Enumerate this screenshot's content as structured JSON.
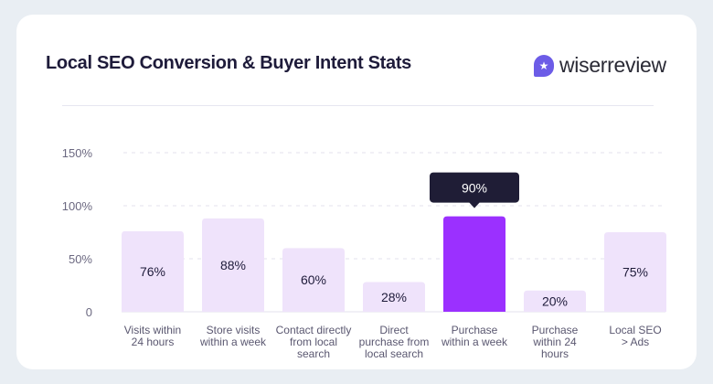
{
  "header": {
    "title": "Local SEO Conversion & Buyer Intent Stats",
    "logo_text": "wiserreview"
  },
  "colors": {
    "bar": "#efe3fb",
    "highlight": "#9b30ff",
    "tooltip": "#1f1d36",
    "background": "#e9eef3"
  },
  "chart_data": {
    "type": "bar",
    "title": "",
    "xlabel": "",
    "ylabel": "",
    "ylim": [
      0,
      150
    ],
    "yticks": [
      "0",
      "50%",
      "100%",
      "150%"
    ],
    "ytick_values": [
      0,
      50,
      100,
      150
    ],
    "grid": true,
    "categories": [
      [
        "Visits within",
        "24 hours"
      ],
      [
        "Store visits",
        "within a week"
      ],
      [
        "Contact directly",
        "from local",
        "search"
      ],
      [
        "Direct",
        "purchase from",
        "local search"
      ],
      [
        "Purchase",
        "within a week"
      ],
      [
        "Purchase",
        "within 24",
        "hours"
      ],
      [
        "Local SEO",
        "> Ads"
      ]
    ],
    "values": [
      76,
      88,
      60,
      28,
      90,
      20,
      75
    ],
    "labels": [
      "76%",
      "88%",
      "60%",
      "28%",
      "90%",
      "20%",
      "75%"
    ],
    "highlight_index": 4,
    "tooltip": "90%"
  }
}
